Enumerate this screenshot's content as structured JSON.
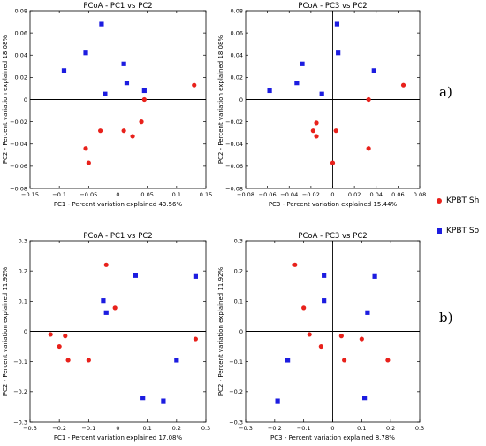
{
  "panel_labels": [
    "a)",
    "b)"
  ],
  "legend": [
    {
      "label": "KPBT Sh",
      "color": "#e8211b",
      "marker": "circle"
    },
    {
      "label": "KPBT So",
      "color": "#1c1ce0",
      "marker": "square"
    }
  ],
  "chart_data": [
    {
      "type": "scatter",
      "title": "PCoA - PC1 vs PC2",
      "xlabel": "PC1 - Percent variation explained 43.56%",
      "ylabel": "PC2 - Percent variation explained 18.08%",
      "xlim": [
        -0.15,
        0.15
      ],
      "ylim": [
        -0.08,
        0.08
      ],
      "xticks": [
        -0.15,
        -0.1,
        -0.05,
        0,
        0.05,
        0.1,
        0.15
      ],
      "yticks": [
        -0.08,
        -0.06,
        -0.04,
        -0.02,
        0,
        0.02,
        0.04,
        0.06,
        0.08
      ],
      "xtick_labels": [
        "−0.15",
        "−0.1",
        "−0.05",
        "0",
        "0.05",
        "0.1",
        "0.15"
      ],
      "ytick_labels": [
        "−0.08",
        "−0.06",
        "−0.04",
        "−0.02",
        "0",
        "0.02",
        "0.04",
        "0.06",
        "0.08"
      ],
      "series": [
        {
          "name": "KPBT Sh",
          "color": "#e8211b",
          "marker": "circle",
          "points": [
            [
              0.13,
              0.013
            ],
            [
              0.045,
              0.0
            ],
            [
              0.04,
              -0.02
            ],
            [
              -0.03,
              -0.028
            ],
            [
              0.01,
              -0.028
            ],
            [
              0.025,
              -0.033
            ],
            [
              -0.055,
              -0.044
            ],
            [
              -0.05,
              -0.057
            ]
          ]
        },
        {
          "name": "KPBT So",
          "color": "#1c1ce0",
          "marker": "square",
          "points": [
            [
              -0.028,
              0.068
            ],
            [
              -0.055,
              0.042
            ],
            [
              -0.092,
              0.026
            ],
            [
              0.01,
              0.032
            ],
            [
              0.015,
              0.015
            ],
            [
              -0.022,
              0.005
            ],
            [
              0.045,
              0.008
            ]
          ]
        }
      ]
    },
    {
      "type": "scatter",
      "title": "PCoA - PC3 vs PC2",
      "xlabel": "PC3 - Percent variation explained 15.44%",
      "ylabel": "PC2 - Percent variation explained 18.08%",
      "xlim": [
        -0.08,
        0.08
      ],
      "ylim": [
        -0.08,
        0.08
      ],
      "xticks": [
        -0.08,
        -0.06,
        -0.04,
        -0.02,
        0,
        0.02,
        0.04,
        0.06,
        0.08
      ],
      "yticks": [
        -0.08,
        -0.06,
        -0.04,
        -0.02,
        0,
        0.02,
        0.04,
        0.06,
        0.08
      ],
      "xtick_labels": [
        "−0.08",
        "−0.06",
        "−0.04",
        "−0.02",
        "0",
        "0.02",
        "0.04",
        "0.06",
        "0.08"
      ],
      "ytick_labels": [
        "−0.08",
        "−0.06",
        "−0.04",
        "−0.02",
        "0",
        "0.02",
        "0.04",
        "0.06",
        "0.08"
      ],
      "series": [
        {
          "name": "KPBT Sh",
          "color": "#e8211b",
          "marker": "circle",
          "points": [
            [
              0.065,
              0.013
            ],
            [
              0.033,
              0.0
            ],
            [
              0.033,
              -0.044
            ],
            [
              -0.015,
              -0.021
            ],
            [
              -0.018,
              -0.028
            ],
            [
              -0.015,
              -0.033
            ],
            [
              0.003,
              -0.028
            ],
            [
              0.0,
              -0.057
            ]
          ]
        },
        {
          "name": "KPBT So",
          "color": "#1c1ce0",
          "marker": "square",
          "points": [
            [
              0.004,
              0.068
            ],
            [
              0.005,
              0.042
            ],
            [
              -0.028,
              0.032
            ],
            [
              0.038,
              0.026
            ],
            [
              -0.033,
              0.015
            ],
            [
              -0.058,
              0.008
            ],
            [
              -0.01,
              0.005
            ]
          ]
        }
      ]
    },
    {
      "type": "scatter",
      "title": "PCoA - PC1 vs PC2",
      "xlabel": "PC1 - Percent variation explained 17.08%",
      "ylabel": "PC2 - Percent variation explained 11.92%",
      "xlim": [
        -0.3,
        0.3
      ],
      "ylim": [
        -0.3,
        0.3
      ],
      "xticks": [
        -0.3,
        -0.2,
        -0.1,
        0,
        0.1,
        0.2,
        0.3
      ],
      "yticks": [
        -0.3,
        -0.2,
        -0.1,
        0,
        0.1,
        0.2,
        0.3
      ],
      "xtick_labels": [
        "−0.3",
        "−0.2",
        "−0.1",
        "0",
        "0.1",
        "0.2",
        "0.3"
      ],
      "ytick_labels": [
        "−0.3",
        "−0.2",
        "−0.1",
        "0",
        "0.1",
        "0.2",
        "0.3"
      ],
      "series": [
        {
          "name": "KPBT Sh",
          "color": "#e8211b",
          "marker": "circle",
          "points": [
            [
              -0.04,
              0.22
            ],
            [
              -0.01,
              0.078
            ],
            [
              -0.23,
              -0.01
            ],
            [
              -0.18,
              -0.015
            ],
            [
              -0.2,
              -0.05
            ],
            [
              -0.17,
              -0.095
            ],
            [
              -0.1,
              -0.095
            ],
            [
              0.265,
              -0.025
            ]
          ]
        },
        {
          "name": "KPBT So",
          "color": "#1c1ce0",
          "marker": "square",
          "points": [
            [
              0.06,
              0.185
            ],
            [
              0.265,
              0.182
            ],
            [
              -0.05,
              0.102
            ],
            [
              -0.04,
              0.062
            ],
            [
              0.2,
              -0.095
            ],
            [
              0.085,
              -0.22
            ],
            [
              0.155,
              -0.23
            ]
          ]
        }
      ]
    },
    {
      "type": "scatter",
      "title": "PCoA - PC3 vs PC2",
      "xlabel": "PC3 - Percent variation explained 8.78%",
      "ylabel": "PC2 - Percent variation explained 11.92%",
      "xlim": [
        -0.3,
        0.3
      ],
      "ylim": [
        -0.3,
        0.3
      ],
      "xticks": [
        -0.3,
        -0.2,
        -0.1,
        0,
        0.1,
        0.2,
        0.3
      ],
      "yticks": [
        -0.3,
        -0.2,
        -0.1,
        0,
        0.1,
        0.2,
        0.3
      ],
      "xtick_labels": [
        "−0.3",
        "−0.2",
        "−0.1",
        "0",
        "0.1",
        "0.2",
        "0.3"
      ],
      "ytick_labels": [
        "−0.3",
        "−0.2",
        "−0.1",
        "0",
        "0.1",
        "0.2",
        "0.3"
      ],
      "series": [
        {
          "name": "KPBT Sh",
          "color": "#e8211b",
          "marker": "circle",
          "points": [
            [
              -0.13,
              0.22
            ],
            [
              -0.1,
              0.078
            ],
            [
              -0.08,
              -0.01
            ],
            [
              0.03,
              -0.015
            ],
            [
              0.1,
              -0.025
            ],
            [
              -0.04,
              -0.05
            ],
            [
              0.04,
              -0.095
            ],
            [
              0.19,
              -0.095
            ]
          ]
        },
        {
          "name": "KPBT So",
          "color": "#1c1ce0",
          "marker": "square",
          "points": [
            [
              -0.03,
              0.185
            ],
            [
              0.145,
              0.182
            ],
            [
              -0.03,
              0.102
            ],
            [
              0.12,
              0.062
            ],
            [
              -0.155,
              -0.095
            ],
            [
              0.11,
              -0.22
            ],
            [
              -0.19,
              -0.23
            ]
          ]
        }
      ]
    }
  ]
}
